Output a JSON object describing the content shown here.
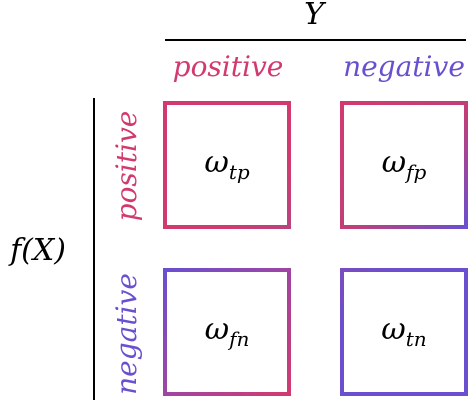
{
  "column_axis": {
    "label": "Y"
  },
  "row_axis": {
    "label": "f(X)"
  },
  "columns": [
    {
      "label": "positive",
      "color": "#d23a6f"
    },
    {
      "label": "negative",
      "color": "#6a4fcf"
    }
  ],
  "rows": [
    {
      "label": "positive",
      "color": "#d23a6f"
    },
    {
      "label": "negative",
      "color": "#6a4fcf"
    }
  ],
  "cells": [
    {
      "base": "ω",
      "subscript": "tp",
      "row": "positive",
      "column": "positive"
    },
    {
      "base": "ω",
      "subscript": "fp",
      "row": "positive",
      "column": "negative"
    },
    {
      "base": "ω",
      "subscript": "fn",
      "row": "negative",
      "column": "positive"
    },
    {
      "base": "ω",
      "subscript": "tn",
      "row": "negative",
      "column": "negative"
    }
  ],
  "colors": {
    "positive": "#d23a6f",
    "negative": "#6a4fcf",
    "text": "#000000"
  }
}
